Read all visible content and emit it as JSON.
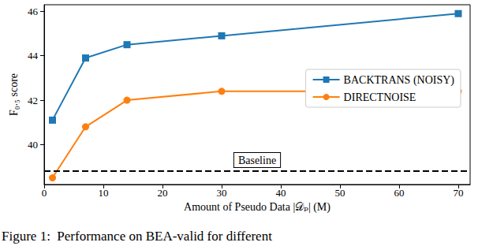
{
  "chart_data": {
    "type": "line",
    "caption": "Figure 1:  Performance on BEA-valid for different",
    "x_label": "Amount of Pseudo Data |𝒟ₚ| (M)",
    "y_label": "F₀.₅ score",
    "x": [
      1.4,
      7,
      14,
      30,
      70
    ],
    "series": [
      {
        "name": "BACKTRANS (NOISY)",
        "color": "#1f77b4",
        "marker": "square",
        "values": [
          41.1,
          43.9,
          44.5,
          44.9,
          45.9
        ]
      },
      {
        "name": "DIRECTNOISE",
        "color": "#ff7f0e",
        "marker": "circle",
        "values": [
          38.5,
          40.8,
          42.0,
          42.4,
          42.4
        ]
      }
    ],
    "baseline": {
      "value": 38.8,
      "label": "Baseline",
      "color": "#000000",
      "line_style": "dashed"
    },
    "xlim": [
      0,
      72
    ],
    "xticks": [
      0,
      10,
      20,
      30,
      40,
      50,
      60,
      70
    ],
    "ylim": [
      38.2,
      46.3
    ],
    "yticks": [
      40,
      42,
      44,
      46
    ],
    "grid": false,
    "legend": "right"
  }
}
